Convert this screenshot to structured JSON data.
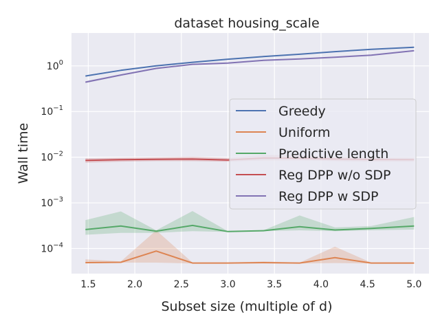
{
  "chart_data": {
    "type": "line",
    "title": "dataset housing_scale",
    "xlabel": "Subset size (multiple of d)",
    "ylabel": "Wall time",
    "yscale": "log",
    "xlim": [
      1.32,
      5.16
    ],
    "ylim_log10": [
      -4.55,
      0.72
    ],
    "x_ticks": [
      1.5,
      2.0,
      2.5,
      3.0,
      3.5,
      4.0,
      4.5,
      5.0
    ],
    "x_tick_labels": [
      "1.5",
      "2.0",
      "2.5",
      "3.0",
      "3.5",
      "4.0",
      "4.5",
      "5.0"
    ],
    "y_ticks": [
      {
        "base": "10",
        "exp": "0",
        "log10": 0
      },
      {
        "base": "10",
        "exp": "−1",
        "log10": -1
      },
      {
        "base": "10",
        "exp": "−2",
        "log10": -2
      },
      {
        "base": "10",
        "exp": "−3",
        "log10": -3
      },
      {
        "base": "10",
        "exp": "−4",
        "log10": -4
      }
    ],
    "grid": true,
    "background": "#eaeaf2",
    "legend_position": "center-right",
    "x": [
      1.47,
      1.85,
      2.23,
      2.62,
      3.0,
      3.38,
      3.77,
      4.15,
      4.54,
      5.0
    ],
    "series": [
      {
        "name": "Greedy",
        "color": "#4c72b0",
        "values": [
          0.6,
          0.8,
          1.0,
          1.2,
          1.4,
          1.6,
          1.8,
          2.05,
          2.3,
          2.55
        ],
        "lower": [
          0.58,
          0.78,
          0.98,
          1.17,
          1.37,
          1.56,
          1.76,
          2.0,
          2.25,
          2.5
        ],
        "upper": [
          0.62,
          0.82,
          1.02,
          1.23,
          1.43,
          1.64,
          1.84,
          2.1,
          2.35,
          2.6
        ]
      },
      {
        "name": "Uniform",
        "color": "#dd8452",
        "values": [
          4.9e-05,
          5e-05,
          8.8e-05,
          4.8e-05,
          4.8e-05,
          4.9e-05,
          4.8e-05,
          6.3e-05,
          4.8e-05,
          4.8e-05
        ],
        "lower": [
          4.7e-05,
          4.9e-05,
          4.9e-05,
          4.7e-05,
          4.7e-05,
          4.7e-05,
          4.7e-05,
          4.8e-05,
          4.7e-05,
          4.7e-05
        ],
        "upper": [
          5.8e-05,
          5.2e-05,
          0.00025,
          4.9e-05,
          4.9e-05,
          5.2e-05,
          4.9e-05,
          0.00011,
          4.9e-05,
          4.9e-05
        ]
      },
      {
        "name": "Predictive length",
        "color": "#55a868",
        "values": [
          0.00026,
          0.00031,
          0.00024,
          0.00032,
          0.000235,
          0.000245,
          0.0003,
          0.000255,
          0.000275,
          0.00031
        ],
        "lower": [
          0.0002,
          0.00022,
          0.00022,
          0.00024,
          0.00023,
          0.00024,
          0.00025,
          0.00024,
          0.00025,
          0.00026
        ],
        "upper": [
          0.00042,
          0.00065,
          0.00025,
          0.00066,
          0.00024,
          0.00025,
          0.00053,
          0.00029,
          0.00031,
          0.00049
        ]
      },
      {
        "name": "Reg DPP w/o SDP",
        "color": "#c44e52",
        "values": [
          0.0085,
          0.0088,
          0.009,
          0.0091,
          0.0087,
          0.0096,
          0.0095,
          0.0091,
          0.0089,
          0.0088
        ],
        "lower": [
          0.0076,
          0.008,
          0.0082,
          0.0082,
          0.008,
          0.0085,
          0.0085,
          0.0082,
          0.008,
          0.008
        ],
        "upper": [
          0.0095,
          0.0097,
          0.0099,
          0.0102,
          0.0096,
          0.0112,
          0.011,
          0.0101,
          0.0098,
          0.0097
        ]
      },
      {
        "name": "Reg DPP w SDP",
        "color": "#8172b3",
        "values": [
          0.44,
          0.63,
          0.88,
          1.08,
          1.15,
          1.32,
          1.42,
          1.55,
          1.72,
          2.15
        ],
        "lower": [
          0.42,
          0.61,
          0.85,
          1.05,
          1.12,
          1.29,
          1.39,
          1.52,
          1.68,
          2.1
        ],
        "upper": [
          0.46,
          0.65,
          0.91,
          1.11,
          1.18,
          1.35,
          1.45,
          1.58,
          1.76,
          2.2
        ]
      }
    ]
  }
}
